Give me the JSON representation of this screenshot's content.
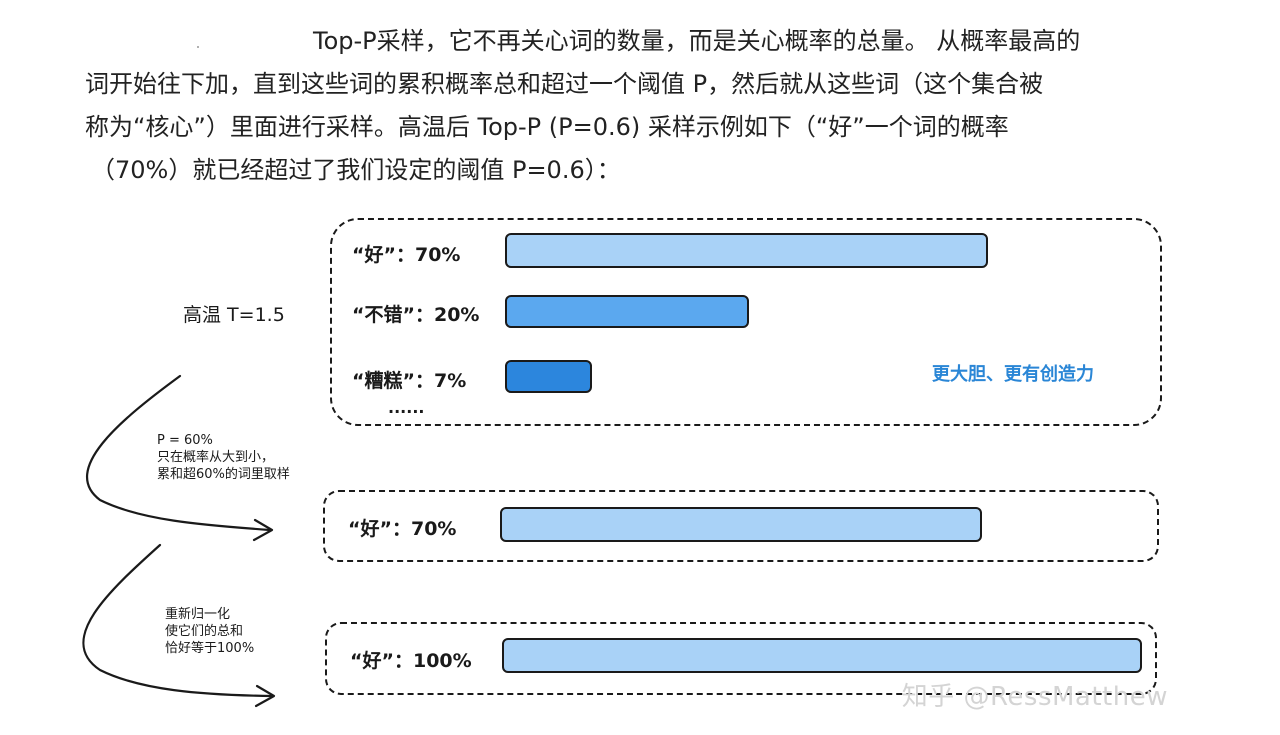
{
  "paragraph": {
    "line1": "Top-P采样，它不再关心词的数量，而是关心概率的总量。 从概率最高的",
    "line2": "词开始往下加，直到这些词的累积概率总和超过一个阈值 P，然后就从这些词（这个集合被",
    "line3": "称为“核心”）里面进行采样。高温后 Top-P (P=0.6) 采样示例如下（“好”一个词的概率",
    "line4": "（70%）就已经超过了我们设定的阈值 P=0.6）："
  },
  "diagram": {
    "temperature_label": "高温  T=1.5",
    "step1": {
      "items": [
        {
          "label": "“好”：70%",
          "value": 70
        },
        {
          "label": "“不错”：20%",
          "value": 20
        },
        {
          "label": "“糟糕”：7%",
          "value": 7
        }
      ],
      "ellipsis": "......",
      "caption": "更大胆、更有创造力"
    },
    "note1": {
      "line1": "P = 60%",
      "line2": "只在概率从大到小，",
      "line3": "累和超60%的词里取样"
    },
    "step2": {
      "items": [
        {
          "label": "“好”：70%",
          "value": 70
        }
      ]
    },
    "note2": {
      "line1": "重新归一化",
      "line2": "使它们的总和",
      "line3": "恰好等于100%"
    },
    "step3": {
      "items": [
        {
          "label": "“好”：100%",
          "value": 100
        }
      ]
    },
    "colors": {
      "bar_light": "#a9d2f7",
      "bar_mid": "#5ba8ef",
      "bar_dark": "#2c86dd",
      "caption": "#2a86d6"
    }
  },
  "watermark": "知乎 @RessMatthew"
}
